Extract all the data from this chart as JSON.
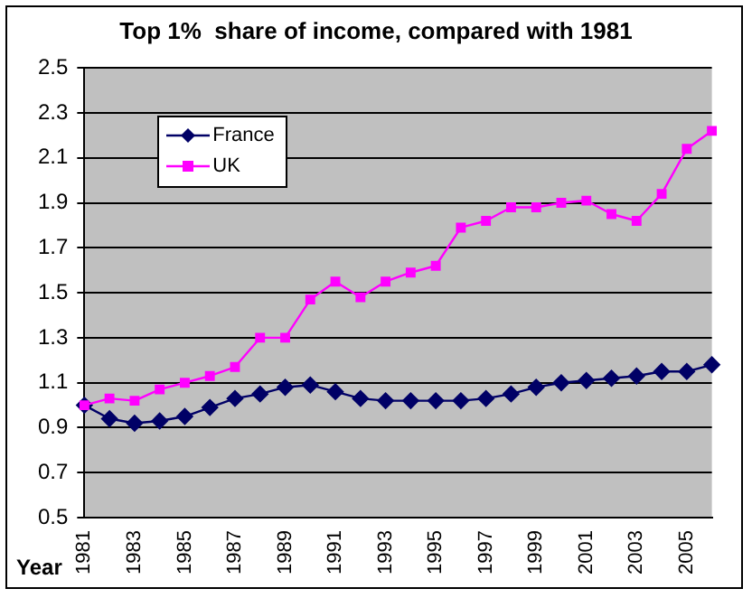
{
  "chart_data": {
    "type": "line",
    "title": "Top 1%  share of income, compared with 1981",
    "xlabel": "Year",
    "categories": [
      "1981",
      null,
      "1983",
      null,
      "1985",
      null,
      "1987",
      null,
      "1989",
      null,
      "1991",
      null,
      "1993",
      null,
      "1995",
      null,
      "1997",
      null,
      "1999",
      null,
      "2001",
      null,
      "2003",
      null,
      "2005",
      null
    ],
    "series": [
      {
        "name": "France",
        "color": "#000066",
        "marker": "diamond",
        "values": [
          1.0,
          0.94,
          0.92,
          0.93,
          0.95,
          0.99,
          1.03,
          1.05,
          1.08,
          1.09,
          1.06,
          1.03,
          1.02,
          1.02,
          1.02,
          1.02,
          1.03,
          1.05,
          1.08,
          1.1,
          1.11,
          1.12,
          1.13,
          1.15,
          1.15,
          1.18
        ]
      },
      {
        "name": "UK",
        "color": "#ff00ff",
        "marker": "square",
        "values": [
          1.0,
          1.03,
          1.02,
          1.07,
          1.1,
          1.13,
          1.17,
          1.3,
          1.3,
          1.47,
          1.55,
          1.48,
          1.55,
          1.59,
          1.62,
          1.79,
          1.82,
          1.88,
          1.88,
          1.9,
          1.91,
          1.85,
          1.82,
          1.94,
          2.14,
          2.22
        ]
      }
    ],
    "ylim": [
      0.5,
      2.5
    ],
    "yticks": [
      {
        "value": 0.5,
        "label": "0.5"
      },
      {
        "value": 0.7,
        "label": "0.7"
      },
      {
        "value": 0.9,
        "label": "0.9"
      },
      {
        "value": 1.1,
        "label": "1.1"
      },
      {
        "value": 1.3,
        "label": "1.3"
      },
      {
        "value": 1.5,
        "label": "1.5"
      },
      {
        "value": 1.7,
        "label": "1.7"
      },
      {
        "value": 1.9,
        "label": "1.9"
      },
      {
        "value": 2.1,
        "label": "2.1"
      },
      {
        "value": 2.3,
        "label": "2.3"
      },
      {
        "value": 2.5,
        "label": "2.5"
      }
    ],
    "grid": "y",
    "legend": "top left",
    "line_style": "solid"
  }
}
